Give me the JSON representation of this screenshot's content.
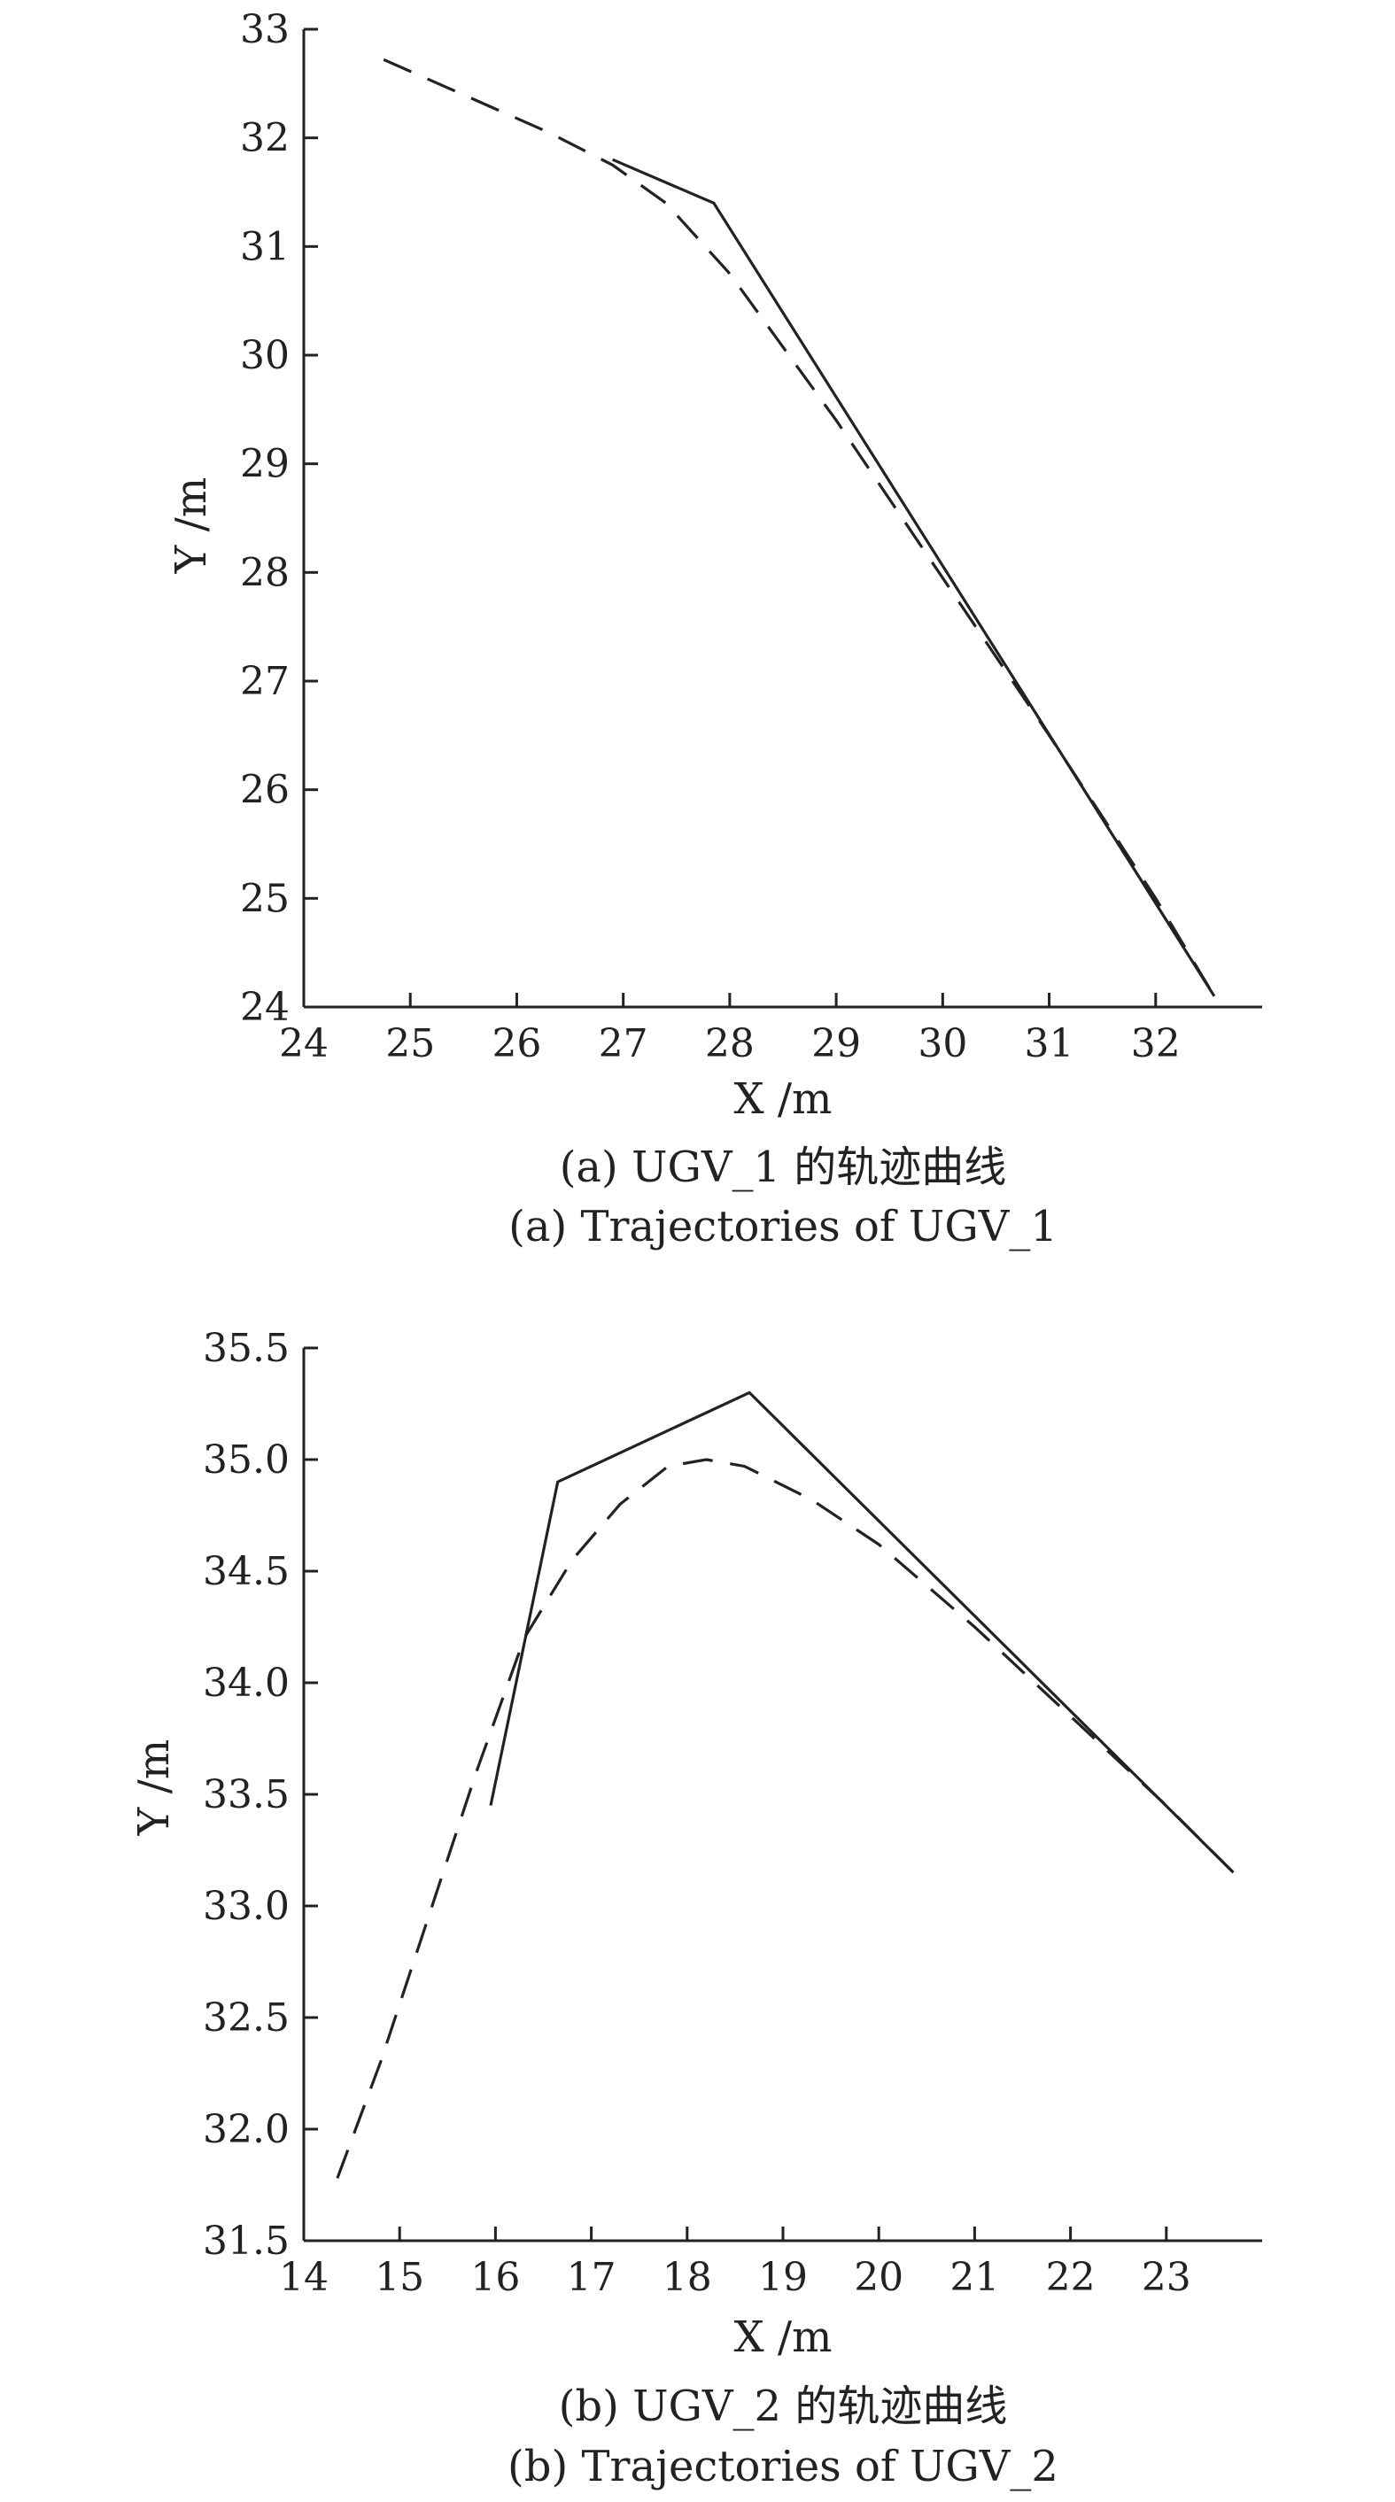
{
  "chart_data": [
    {
      "type": "line",
      "xlabel": "X /m",
      "ylabel": "Y /m",
      "xlim": [
        24,
        33
      ],
      "ylim": [
        24,
        33
      ],
      "xticks": [
        "24",
        "25",
        "26",
        "27",
        "28",
        "29",
        "30",
        "31",
        "32"
      ],
      "yticks": [
        "24",
        "25",
        "26",
        "27",
        "28",
        "29",
        "30",
        "31",
        "32",
        "33"
      ],
      "grid": false,
      "caption_cn": "(a) UGV_1 的轨迹曲线",
      "caption_en": "(a) Trajectories of UGV_1",
      "series": [
        {
          "style": "solid",
          "x": [
            26.9,
            27.85,
            32.55
          ],
          "y": [
            31.8,
            31.4,
            24.1
          ]
        },
        {
          "style": "dashed",
          "x": [
            24.75,
            26.3,
            26.9,
            27.4,
            28.0,
            29.0,
            30.0,
            31.0,
            32.0,
            32.55
          ],
          "y": [
            32.72,
            32.05,
            31.75,
            31.4,
            30.75,
            29.4,
            27.95,
            26.5,
            25.0,
            24.1
          ]
        }
      ]
    },
    {
      "type": "line",
      "xlabel": "X /m",
      "ylabel": "Y /m",
      "xlim": [
        14,
        24
      ],
      "ylim": [
        31.5,
        35.5
      ],
      "xticks": [
        "14",
        "15",
        "16",
        "17",
        "18",
        "19",
        "20",
        "21",
        "22",
        "23"
      ],
      "yticks": [
        "31.5",
        "32.0",
        "32.5",
        "33.0",
        "33.5",
        "34.0",
        "34.5",
        "35.0",
        "35.5"
      ],
      "grid": false,
      "caption_cn": "(b) UGV_2 的轨迹曲线",
      "caption_en": "(b) Trajectories of UGV_2",
      "series": [
        {
          "style": "solid",
          "x": [
            15.95,
            16.65,
            18.65,
            23.7
          ],
          "y": [
            33.45,
            34.9,
            35.3,
            33.15
          ]
        },
        {
          "style": "dashed",
          "x": [
            14.35,
            14.8,
            15.3,
            15.8,
            16.3,
            16.8,
            17.3,
            17.8,
            18.2,
            18.6,
            19.3,
            20.0,
            21.0,
            22.0,
            23.0,
            23.7
          ],
          "y": [
            31.78,
            32.3,
            32.95,
            33.6,
            34.2,
            34.55,
            34.8,
            34.97,
            35.0,
            34.97,
            34.82,
            34.62,
            34.25,
            33.85,
            33.45,
            33.15
          ]
        }
      ]
    }
  ]
}
